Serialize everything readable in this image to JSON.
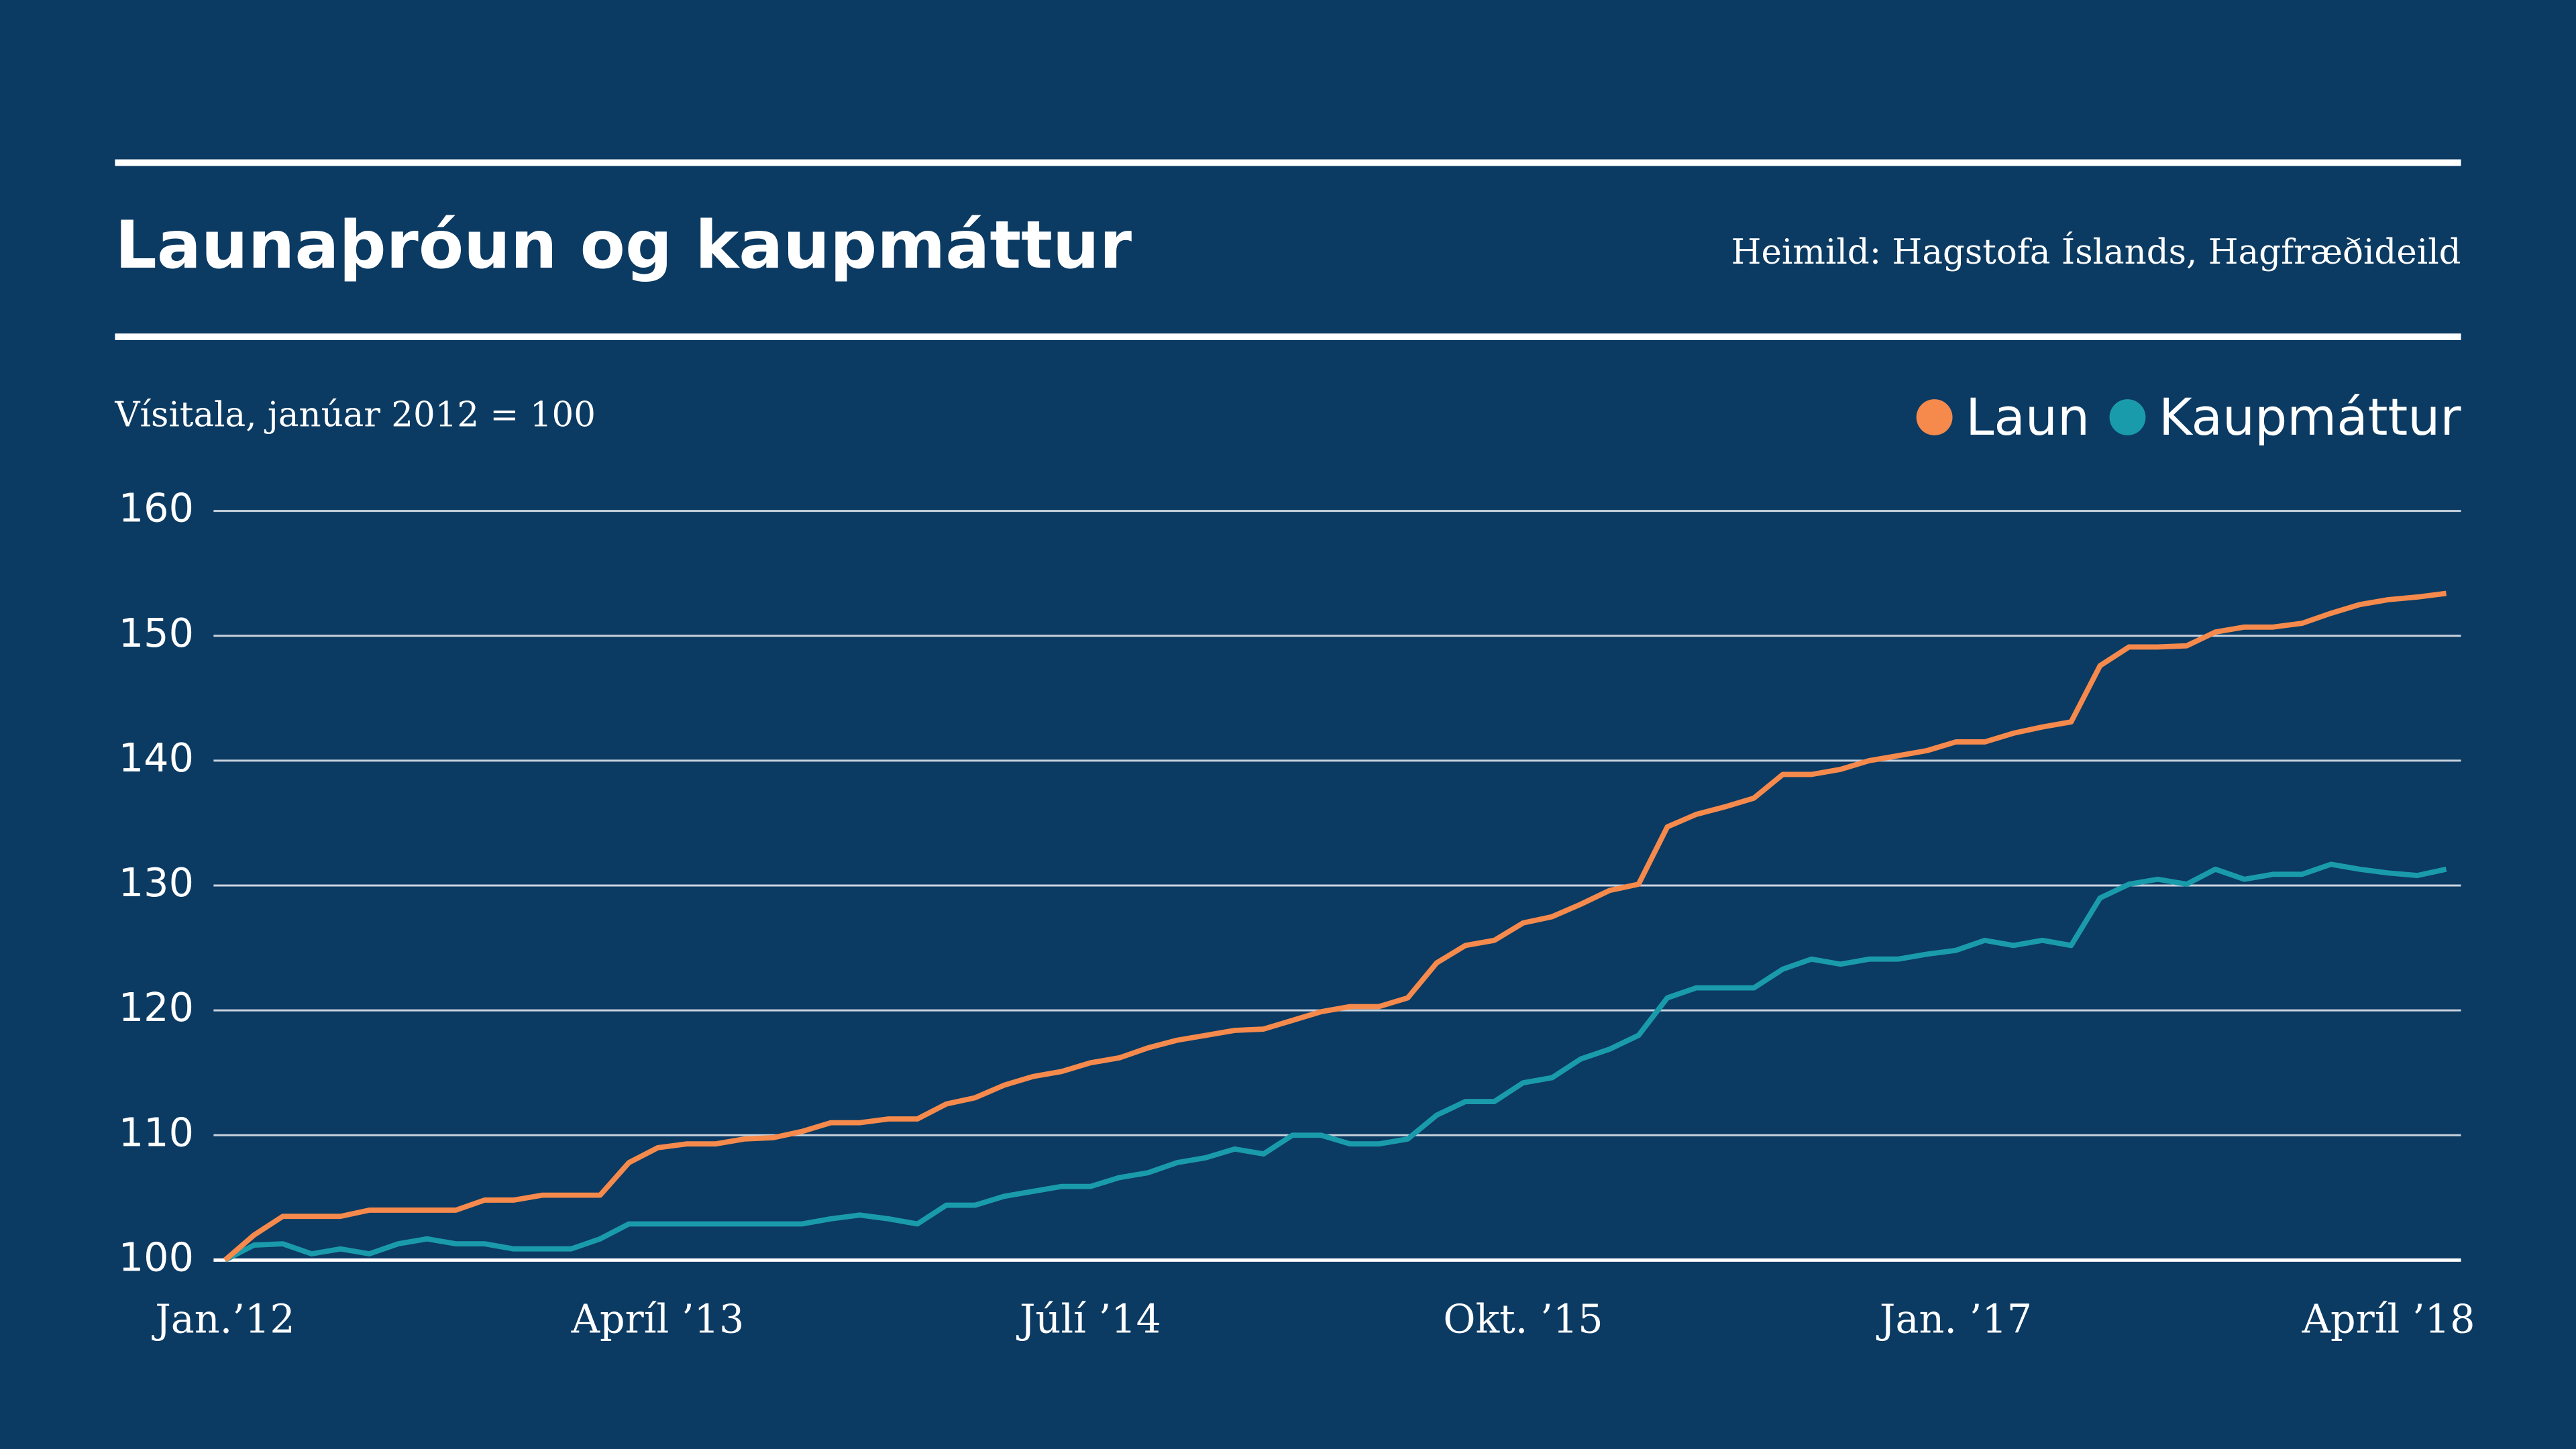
{
  "chart_data": {
    "type": "line",
    "title": "Launaþróun og kaupmáttur",
    "source": "Heimild: Hagstofa Íslands, Hagfræðideild",
    "y_label": "Vísitala, janúar 2012 = 100",
    "categories": [
      "Jan.’12",
      null,
      null,
      null,
      null,
      null,
      null,
      null,
      null,
      null,
      null,
      null,
      null,
      null,
      null,
      "Apríl ’13",
      null,
      null,
      null,
      null,
      null,
      null,
      null,
      null,
      null,
      null,
      null,
      null,
      null,
      null,
      "Júlí ’14",
      null,
      null,
      null,
      null,
      null,
      null,
      null,
      null,
      null,
      null,
      null,
      null,
      null,
      null,
      "Okt. ’15",
      null,
      null,
      null,
      null,
      null,
      null,
      null,
      null,
      null,
      null,
      null,
      null,
      null,
      null,
      "Jan. ’17",
      null,
      null,
      null,
      null,
      null,
      null,
      null,
      null,
      null,
      null,
      null,
      null,
      null,
      null,
      "Apríl ’18",
      null,
      null
    ],
    "series": [
      {
        "name": "Laun",
        "color": "#f58a4c",
        "values": [
          100,
          102,
          103.5,
          103.5,
          103.5,
          104,
          104,
          104,
          104,
          104.8,
          104.8,
          105.2,
          105.2,
          105.2,
          107.8,
          109,
          109.3,
          109.3,
          109.7,
          109.8,
          110.3,
          111,
          111,
          111.3,
          111.3,
          112.5,
          113,
          114,
          114.7,
          115.1,
          115.8,
          116.2,
          117,
          117.6,
          118,
          118.4,
          118.5,
          119.2,
          119.9,
          120.3,
          120.3,
          121,
          123.8,
          125.2,
          125.6,
          127,
          127.5,
          128.5,
          129.6,
          130.1,
          134.7,
          135.7,
          136.3,
          137,
          138.9,
          138.9,
          139.3,
          140,
          140.4,
          140.8,
          141.5,
          141.5,
          142.2,
          142.7,
          143.1,
          147.6,
          149.1,
          149.1,
          149.2,
          150.3,
          150.7,
          150.7,
          151,
          151.8,
          152.5,
          152.9,
          153.1,
          153.4
        ]
      },
      {
        "name": "Kaupmáttur",
        "color": "#1a9bab",
        "values": [
          100,
          101.2,
          101.3,
          100.5,
          100.9,
          100.5,
          101.3,
          101.7,
          101.3,
          101.3,
          100.9,
          100.9,
          100.9,
          101.7,
          102.9,
          102.9,
          102.9,
          102.9,
          102.9,
          102.9,
          102.9,
          103.3,
          103.6,
          103.3,
          102.9,
          104.4,
          104.4,
          105.1,
          105.5,
          105.9,
          105.9,
          106.6,
          107,
          107.8,
          108.2,
          108.9,
          108.5,
          110,
          110,
          109.3,
          109.3,
          109.7,
          111.6,
          112.7,
          112.7,
          114.2,
          114.6,
          116.1,
          116.9,
          118,
          121,
          121.8,
          121.8,
          121.8,
          123.3,
          124.1,
          123.7,
          124.1,
          124.1,
          124.5,
          124.8,
          125.6,
          125.2,
          125.6,
          125.2,
          129,
          130.1,
          130.5,
          130.1,
          131.3,
          130.5,
          130.9,
          130.9,
          131.7,
          131.3,
          131,
          130.8,
          131.3
        ]
      }
    ],
    "ylim": [
      100,
      160
    ],
    "yticks": [
      100,
      110,
      120,
      130,
      140,
      150,
      160
    ],
    "grid": true,
    "legend": "top-right"
  }
}
